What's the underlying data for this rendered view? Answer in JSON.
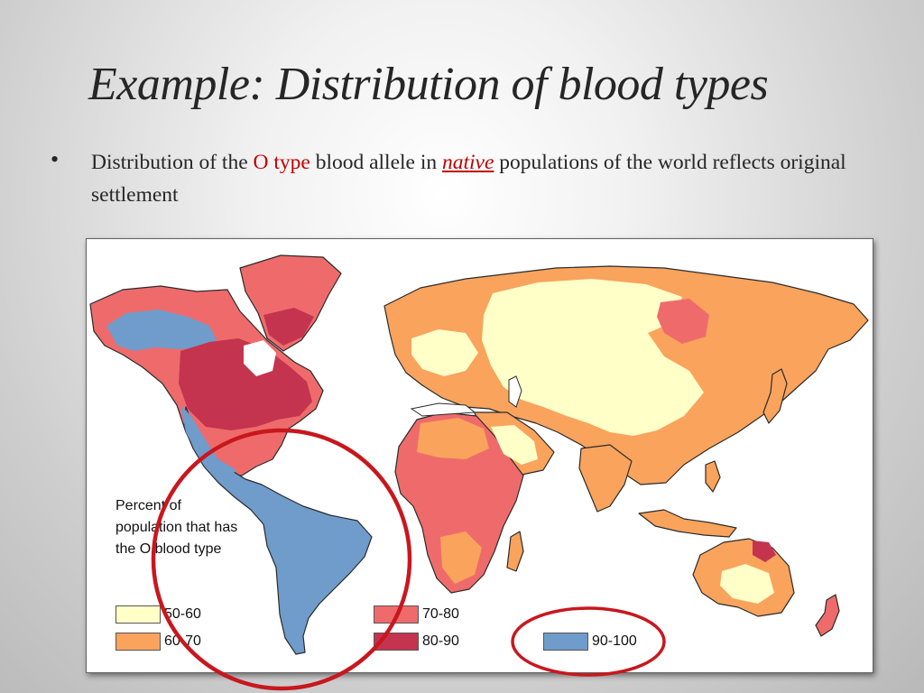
{
  "slide": {
    "title": "Example: Distribution of  blood types",
    "bullet": {
      "marker": "•",
      "text_before": "Distribution of  the ",
      "highlight": "O type",
      "text_middle": " blood allele in ",
      "emphasis": "native",
      "text_after": " populations of  the world reflects original settlement"
    }
  },
  "map": {
    "legend": {
      "title": "Percent of population that has the O blood type",
      "items": [
        {
          "label": "50-60",
          "color": "#ffffc8"
        },
        {
          "label": "60-70",
          "color": "#f9a35c"
        },
        {
          "label": "70-80",
          "color": "#ef6b6b"
        },
        {
          "label": "80-90",
          "color": "#c4344f"
        },
        {
          "label": "90-100",
          "color": "#6f9ccb"
        }
      ]
    },
    "colors": {
      "land_outline": "#2b2b2b",
      "annotation_circle": "#c8171e"
    }
  }
}
